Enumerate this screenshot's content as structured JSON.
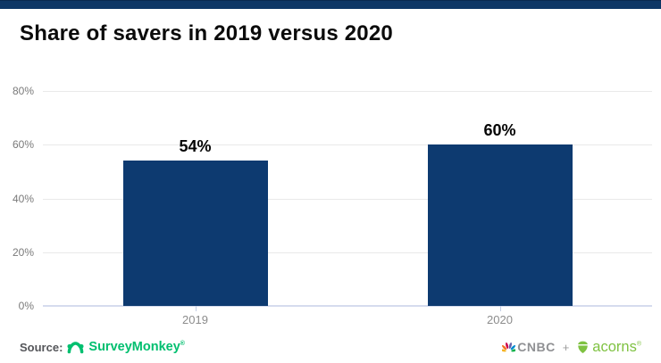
{
  "banner": {
    "color": "#0e3766"
  },
  "chart_data": {
    "type": "bar",
    "title": "Share of savers in 2019 versus 2020",
    "categories": [
      "2019",
      "2020"
    ],
    "values": [
      54,
      60
    ],
    "value_labels": [
      "54%",
      "60%"
    ],
    "xlabel": "",
    "ylabel": "",
    "ylim": [
      0,
      80
    ],
    "ytick_labels_desc": [
      "80%",
      "60%",
      "40%",
      "20%",
      "0%"
    ],
    "grid": true,
    "legend": false,
    "bar_color": "#0d3a70"
  },
  "footer": {
    "source_label": "Source:",
    "source_brand": "SurveyMonkey",
    "source_brand_mark": "®",
    "cnbc_label": "CNBC",
    "plus_label": "+",
    "acorns_label": "acorns",
    "acorns_mark": "®"
  },
  "icons": {
    "surveymonkey": "surveymonkey-monkey-icon",
    "cnbc": "cnbc-peacock-icon",
    "acorns": "acorn-icon"
  },
  "colors": {
    "banner_navy": "#0e3766",
    "bar_navy": "#0d3a70",
    "gridline_gray": "#e9e9e9",
    "axis_blue": "#d5dbee",
    "surveymonkey_green": "#00bf6f",
    "acorns_green": "#7fc242",
    "cnbc_gray": "#8f9093",
    "tick_text_gray": "#7a7a7a"
  }
}
